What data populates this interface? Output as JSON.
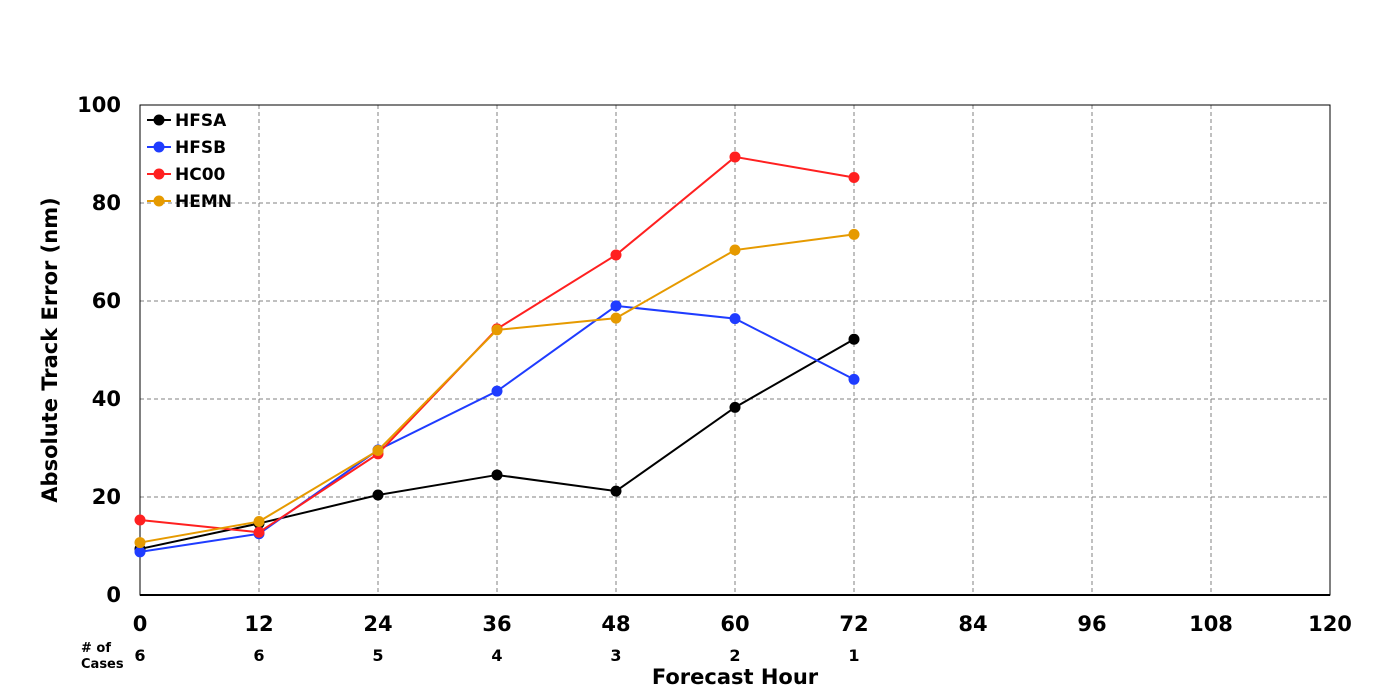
{
  "chart_data": {
    "type": "line",
    "xlabel": "Forecast Hour",
    "ylabel": "Absolute Track Error (nm)",
    "xlim": [
      0,
      120
    ],
    "ylim": [
      0,
      100
    ],
    "x_ticks": [
      0,
      12,
      24,
      36,
      48,
      60,
      72,
      84,
      96,
      108,
      120
    ],
    "y_ticks": [
      0,
      20,
      40,
      60,
      80,
      100
    ],
    "grid": true,
    "legend_position": "top-left",
    "cases_label": [
      "# of",
      "Cases"
    ],
    "cases": [
      {
        "x": 0,
        "count": "6"
      },
      {
        "x": 12,
        "count": "6"
      },
      {
        "x": 24,
        "count": "5"
      },
      {
        "x": 36,
        "count": "4"
      },
      {
        "x": 48,
        "count": "3"
      },
      {
        "x": 60,
        "count": "2"
      },
      {
        "x": 72,
        "count": "1"
      }
    ],
    "x": [
      0,
      12,
      24,
      36,
      48,
      60,
      72
    ],
    "series": [
      {
        "name": "HFSA",
        "color": "#000000",
        "values": [
          9.4,
          14.6,
          20.4,
          24.5,
          21.2,
          38.3,
          52.2
        ]
      },
      {
        "name": "HFSB",
        "color": "#1f3cff",
        "values": [
          8.8,
          12.5,
          29.6,
          41.6,
          59.0,
          56.4,
          44.0
        ]
      },
      {
        "name": "HC00",
        "color": "#ff2020",
        "values": [
          15.3,
          12.8,
          28.8,
          54.3,
          69.4,
          89.4,
          85.2
        ]
      },
      {
        "name": "HEMN",
        "color": "#e69a00",
        "values": [
          10.7,
          15.0,
          29.5,
          54.1,
          56.5,
          70.4,
          73.6
        ]
      }
    ]
  }
}
